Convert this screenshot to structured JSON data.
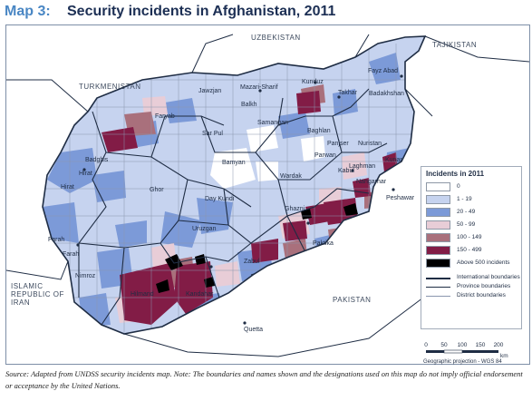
{
  "header": {
    "map_number": "Map 3:",
    "title": "Security incidents in Afghanistan, 2011"
  },
  "colors": {
    "c0": "#ffffff",
    "c1": "#c6d3ef",
    "c20": "#7c9ad8",
    "c50": "#e8cdd7",
    "c100": "#a9707c",
    "c150": "#821c46",
    "c500": "#000000",
    "neighbor": "#ffffff",
    "border": "#1f2d44",
    "title_blue": "#4a87c4",
    "title_navy": "#1c2f54"
  },
  "countries": {
    "uzbekistan": "UZBEKISTAN",
    "tajikistan": "TAJIKISTAN",
    "turkmenistan": "TURKMENISTAN",
    "iran": "ISLAMIC REPUBLIC OF IRAN",
    "pakistan": "PAKISTAN"
  },
  "places": {
    "fayz_abad": "Fayz Abad",
    "badakhshan": "Badakhshan",
    "takhar": "Takhar",
    "kunduz": "Kunduz",
    "mazari_sharif": "Mazari-Sharif",
    "balkh": "Balkh",
    "jawzjan": "Jawzjan",
    "samangan": "Samangan",
    "faryab": "Faryab",
    "sar_pul": "Sar Pul",
    "baghlan": "Baghlan",
    "panjsher": "Panjser",
    "nuristan": "Nuristan",
    "parwan": "Parwan",
    "kunar": "Kunar",
    "laghman": "Laghman",
    "badghis": "Badghis",
    "hirat_city": "Hirat",
    "hirat": "Hirat",
    "bamyan": "Bamyan",
    "ghor": "Ghor",
    "wardak": "Wardak",
    "kabul": "Kabul",
    "nangarhar": "Nangarhar",
    "peshawar": "Peshawar",
    "day_kundi": "Day Kundi",
    "ghazni": "Ghazni",
    "farah": "Farah",
    "farah_prov": "Farah",
    "uruzgan": "Uruzgan",
    "paktika": "Paktika",
    "zabul": "Zabul",
    "helmand": "Hilmand",
    "nimroz": "Nimroz",
    "kandahar": "Kandahar",
    "quetta": "Quetta"
  },
  "legend": {
    "title": "Incidents in 2011",
    "items": [
      {
        "label": "0",
        "color": "#ffffff"
      },
      {
        "label": "1 - 19",
        "color": "#c6d3ef"
      },
      {
        "label": "20 - 49",
        "color": "#7c9ad8"
      },
      {
        "label": "50 - 99",
        "color": "#e8cdd7"
      },
      {
        "label": "100 - 149",
        "color": "#a9707c"
      },
      {
        "label": "150 - 499",
        "color": "#821c46"
      },
      {
        "label": "Above 500 incidents",
        "color": "#000000"
      }
    ],
    "lines": [
      {
        "label": "International boundaries"
      },
      {
        "label": "Province boundaries"
      },
      {
        "label": "District boundaries"
      }
    ]
  },
  "scale": {
    "ticks": [
      "0",
      "50",
      "100",
      "150",
      "200"
    ],
    "unit": "km",
    "projection": "Geographic projection - WGS 84"
  },
  "source": "Source: Adapted from UNDSS security incidents map. Note: The boundaries and names shown and the designations used on this map do not imply official endorsement or acceptance by the United Nations."
}
